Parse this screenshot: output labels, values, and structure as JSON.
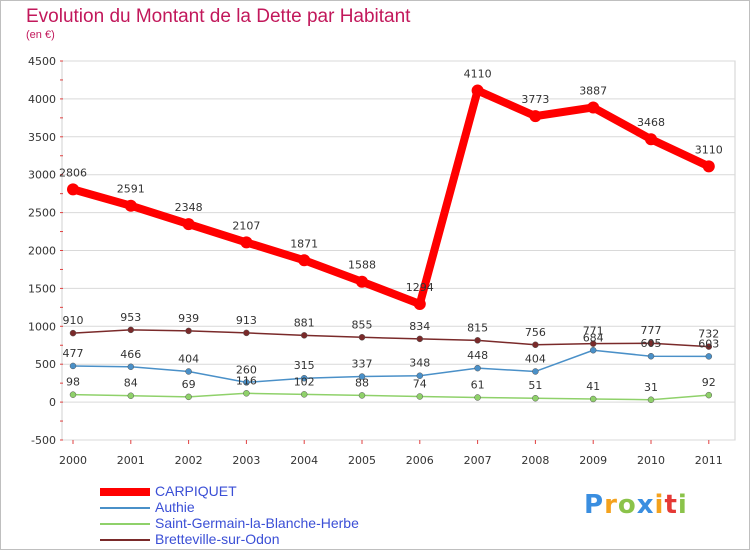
{
  "chart_data": {
    "type": "line",
    "title": "Evolution du Montant de la Dette par Habitant",
    "subtitle": "(en €)",
    "x": [
      "2000",
      "2001",
      "2002",
      "2003",
      "2004",
      "2005",
      "2006",
      "2007",
      "2008",
      "2009",
      "2010",
      "2011"
    ],
    "yticks": [
      "4500",
      "4000",
      "3500",
      "3000",
      "2500",
      "2000",
      "1500",
      "1000",
      "500",
      "0",
      "-500"
    ],
    "ylim": [
      -500,
      4500
    ],
    "legend_position": "bottom-left",
    "series": [
      {
        "name": "CARPIQUET",
        "color": "#ff0000",
        "values": [
          2806,
          2591,
          2348,
          2107,
          1871,
          1588,
          1294,
          4110,
          3773,
          3887,
          3468,
          3110
        ],
        "labels": [
          "2806",
          "2591",
          "2348",
          "2107",
          "1871",
          "1588",
          "1294",
          "4110",
          "3773",
          "3887",
          "3468",
          "3110"
        ]
      },
      {
        "name": "Authie",
        "color": "#4a90c8",
        "values": [
          477,
          466,
          404,
          260,
          315,
          337,
          348,
          448,
          404,
          684,
          605,
          603
        ],
        "labels": [
          "477",
          "466",
          "404",
          "260",
          "315",
          "337",
          "348",
          "448",
          "404",
          "684",
          "605",
          "603"
        ]
      },
      {
        "name": "Saint-Germain-la-Blanche-Herbe",
        "color": "#8fd16a",
        "values": [
          98,
          84,
          69,
          116,
          102,
          88,
          74,
          61,
          51,
          41,
          31,
          92
        ],
        "labels": [
          "98",
          "84",
          "69",
          "116",
          "102",
          "88",
          "74",
          "61",
          "51",
          "41",
          "31",
          "92"
        ]
      },
      {
        "name": "Bretteville-sur-Odon",
        "color": "#7a2a2a",
        "values": [
          910,
          953,
          939,
          913,
          881,
          855,
          834,
          815,
          756,
          771,
          777,
          732
        ],
        "labels": [
          "910",
          "953",
          "939",
          "913",
          "881",
          "855",
          "834",
          "815",
          "756",
          "771",
          "777",
          "732"
        ]
      }
    ]
  },
  "logo": {
    "text": [
      "P",
      "r",
      "o",
      "x",
      "i",
      "t",
      "i"
    ],
    "colors": [
      "#3a8ee0",
      "#f4a21d",
      "#8bc34a",
      "#3a8ee0",
      "#f4a21d",
      "#e53935",
      "#8bc34a"
    ]
  }
}
